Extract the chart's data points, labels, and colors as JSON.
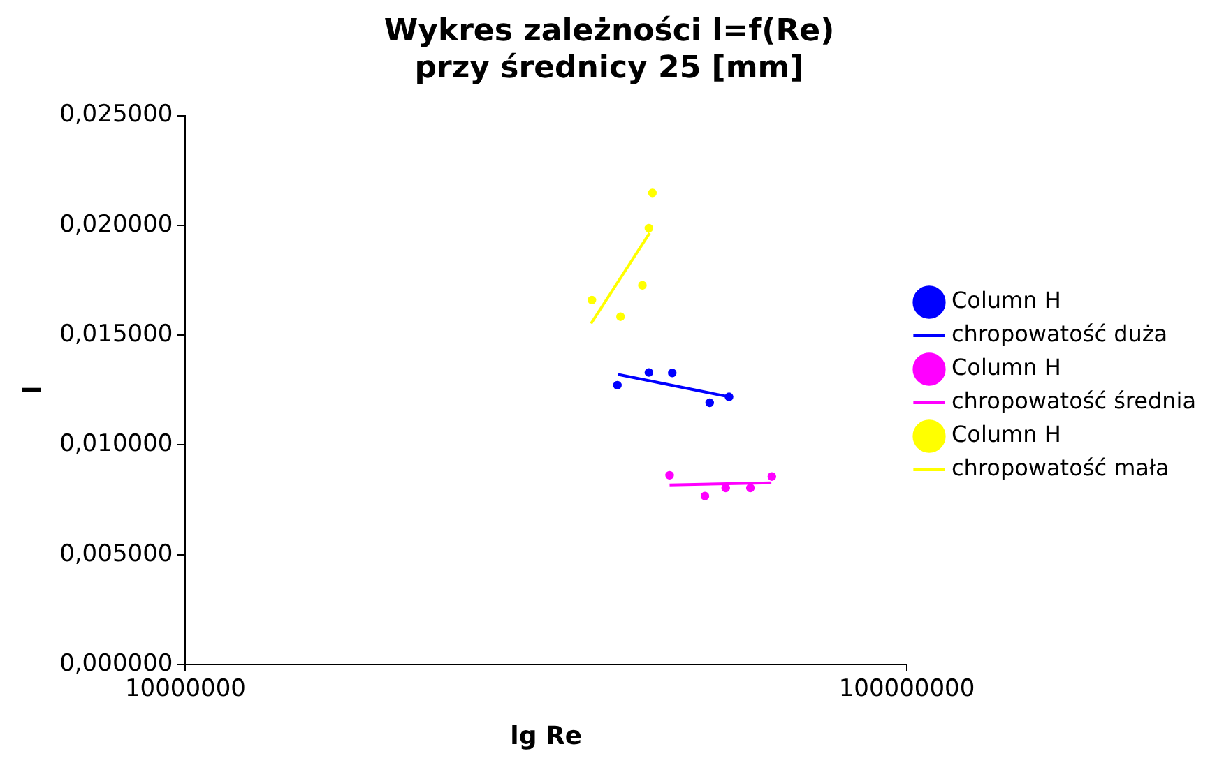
{
  "chart_data": {
    "type": "scatter",
    "title": "Wykres zależności l=f(Re)\nprzy średnicy 25 [mm]",
    "xlabel": "lg Re",
    "ylabel": "l",
    "log": "x",
    "xlim": [
      10000000,
      100000000
    ],
    "xticks": [
      10000000,
      100000000
    ],
    "ylim": [
      0,
      0.025
    ],
    "yticks": [
      {
        "value": 0,
        "label": "0,000000"
      },
      {
        "value": 0.005,
        "label": "0,005000"
      },
      {
        "value": 0.01,
        "label": "0,010000"
      },
      {
        "value": 0.015,
        "label": "0,015000"
      },
      {
        "value": 0.02,
        "label": "0,020000"
      },
      {
        "value": 0.025,
        "label": "0,025000"
      }
    ],
    "grid": false,
    "legend": "right",
    "marker": "circle",
    "series": [
      {
        "name": "Column H",
        "type": "scatter",
        "color": "#0000ff",
        "x": [
          39700000,
          43900000,
          47300000,
          53300000,
          56700000
        ],
        "values": [
          0.01272,
          0.0133,
          0.01328,
          0.01192,
          0.01219
        ]
      },
      {
        "name": "chropowatość duża",
        "type": "line",
        "marker": "none",
        "color": "#0000ff",
        "x": [
          39800000,
          56700000
        ],
        "values": [
          0.01321,
          0.01219
        ]
      },
      {
        "name": "Column H",
        "type": "scatter",
        "color": "#ff00ff",
        "x": [
          46900000,
          52500000,
          56100000,
          60700000,
          65000000
        ],
        "values": [
          0.00862,
          0.00767,
          0.00804,
          0.00804,
          0.00856
        ]
      },
      {
        "name": "chropowatość średnia",
        "type": "line",
        "marker": "none",
        "color": "#ff00ff",
        "x": [
          46900000,
          64900000
        ],
        "values": [
          0.00818,
          0.00827
        ]
      },
      {
        "name": "Column H",
        "type": "scatter",
        "color": "#ffff00",
        "x": [
          36600000,
          40100000,
          43000000,
          43900000,
          44400000
        ],
        "values": [
          0.0166,
          0.01584,
          0.01727,
          0.01987,
          0.02148
        ]
      },
      {
        "name": "chropowatość mała",
        "type": "line",
        "marker": "none",
        "color": "#ffff00",
        "x": [
          36500000,
          44000000
        ],
        "values": [
          0.01553,
          0.01965
        ]
      }
    ]
  }
}
